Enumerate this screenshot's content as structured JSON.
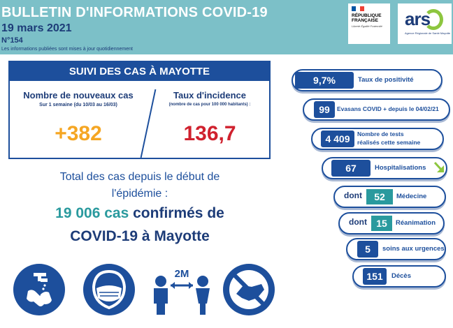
{
  "header": {
    "title": "BULLETIN D'INFORMATIONS COVID-19",
    "date": "19 mars 2021",
    "number": "N°154",
    "note": "Les informations publiées sont mises à jour quotidiennement",
    "logo_rf": {
      "line1": "RÉPUBLIQUE",
      "line2": "FRANÇAISE",
      "motto": "Liberté Égalité Fraternité"
    },
    "logo_ars": {
      "name": "ars",
      "sub": "Agence Régionale de Santé Mayotte"
    }
  },
  "suivi": {
    "title": "SUIVI DES CAS À MAYOTTE",
    "new_cases_label": "Nombre de nouveaux cas",
    "new_cases_sub": "Sur 1 semaine (du 10/03 au 16/03)",
    "new_cases_value": "+382",
    "incidence_label": "Taux d'incidence",
    "incidence_sub": "(nombre de cas pour 100 000 habitants) :",
    "incidence_value": "136,7"
  },
  "total": {
    "line1": "Total des cas depuis le début de",
    "line2": "l'épidémie :",
    "count": "19 006 cas",
    "count_suffix": " confirmés de",
    "line4": "COVID-19 à Mayotte"
  },
  "icons": [
    "hand-washing-icon",
    "face-mask-icon",
    "social-distancing-2m-icon",
    "no-handshake-icon"
  ],
  "icon_text": {
    "distance": "2M"
  },
  "stats": {
    "positivity": {
      "value": "9,7%",
      "label": "Taux de positivité"
    },
    "evasans": {
      "value": "99",
      "label": "Evasans COVID + depuis le 04/02/21"
    },
    "tests": {
      "value": "4 409",
      "label1": "Nombre de tests",
      "label2": "réalisés cette semaine"
    },
    "hospital": {
      "value": "67",
      "label": "Hospitalisations",
      "trend": "down"
    },
    "medecine": {
      "prefix": "dont",
      "value": "52",
      "label": "Médecine"
    },
    "reanimation": {
      "prefix": "dont",
      "value": "15",
      "label": "Réanimation"
    },
    "urgences": {
      "value": "5",
      "label": "soins aux urgences"
    },
    "deces": {
      "value": "151",
      "label": "Décès"
    }
  },
  "colors": {
    "header": "#7cc0c8",
    "navy": "#1d4f9c",
    "teal": "#2a9a9e",
    "orange": "#f5a623",
    "red": "#d0212e",
    "green_arrow": "#8dc63f"
  }
}
